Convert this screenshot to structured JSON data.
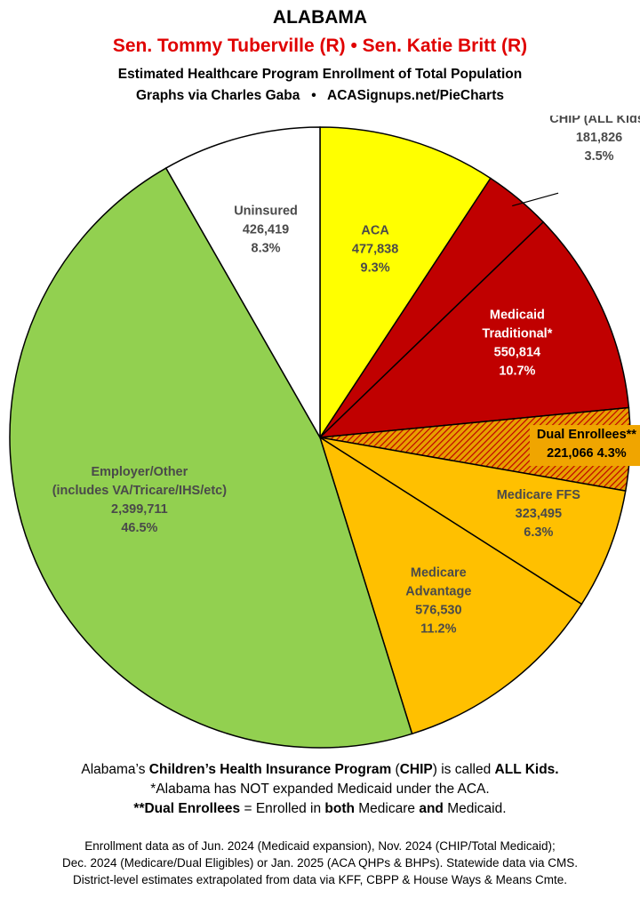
{
  "header": {
    "state": "ALABAMA",
    "senators": "Sen. Tommy Tuberville (R) • Sen. Katie Britt (R)",
    "subtitle": "Estimated Healthcare Program Enrollment of Total Population",
    "credit": "Graphs via Charles Gaba   •   ACASignups.net/PieCharts"
  },
  "chart_data": {
    "type": "pie",
    "start": "12 o'clock",
    "direction": "clockwise",
    "slices": [
      {
        "label": "ACA",
        "value": 477838,
        "value_text": "477,838",
        "percent": "9.3%",
        "color": "#ffff00",
        "text_color": "#4a4a4a"
      },
      {
        "label": "CHIP (ALL Kids)",
        "value": 181826,
        "value_text": "181,826",
        "percent": "3.5%",
        "color": "#c00000",
        "text_color": "#4a4a4a",
        "callout": true
      },
      {
        "label": "Medicaid Traditional*",
        "label_lines": [
          "Medicaid",
          "Traditional*"
        ],
        "value": 550814,
        "value_text": "550,814",
        "percent": "10.7%",
        "color": "#c00000",
        "text_color": "#ffffff"
      },
      {
        "label": "Dual Enrollees**",
        "value": 221066,
        "value_text": "221,066",
        "percent": "4.3%",
        "color": "#e8a000",
        "hatch": true,
        "text_color": "#000000"
      },
      {
        "label": "Medicare FFS",
        "value": 323495,
        "value_text": "323,495",
        "percent": "6.3%",
        "color": "#ffc000",
        "text_color": "#4a4a4a"
      },
      {
        "label": "Medicare Advantage",
        "label_lines": [
          "Medicare",
          "Advantage"
        ],
        "value": 576530,
        "value_text": "576,530",
        "percent": "11.2%",
        "color": "#ffc000",
        "text_color": "#4a4a4a"
      },
      {
        "label": "Employer/Other (includes VA/Tricare/IHS/etc)",
        "label_lines": [
          "Employer/Other",
          "(includes VA/Tricare/IHS/etc)"
        ],
        "value": 2399711,
        "value_text": "2,399,711",
        "percent": "46.5%",
        "color": "#92d050",
        "text_color": "#4a4a4a"
      },
      {
        "label": "Uninsured",
        "value": 426419,
        "value_text": "426,419",
        "percent": "8.3%",
        "color": "#ffffff",
        "text_color": "#4a4a4a"
      }
    ]
  },
  "notes": {
    "line1_a": "Alabama’s ",
    "line1_b": "Children’s Health Insurance Program",
    "line1_c": " (",
    "line1_d": "CHIP",
    "line1_e": ") is called ",
    "line1_f": "ALL Kids.",
    "line2": "*Alabama has NOT expanded Medicaid under the ACA.",
    "line3_a": "**Dual Enrollees",
    "line3_b": " = Enrolled in ",
    "line3_c": "both",
    "line3_d": " Medicare ",
    "line3_e": "and",
    "line3_f": " Medicaid."
  },
  "sources": [
    "Enrollment data as of Jun. 2024 (Medicaid expansion), Nov. 2024 (CHIP/Total Medicaid);",
    "Dec. 2024 (Medicare/Dual Eligibles) or Jan. 2025 (ACA QHPs & BHPs). Statewide data via CMS.",
    "District-level estimates extrapolated from data via KFF, CBPP & House Ways & Means Cmte."
  ]
}
